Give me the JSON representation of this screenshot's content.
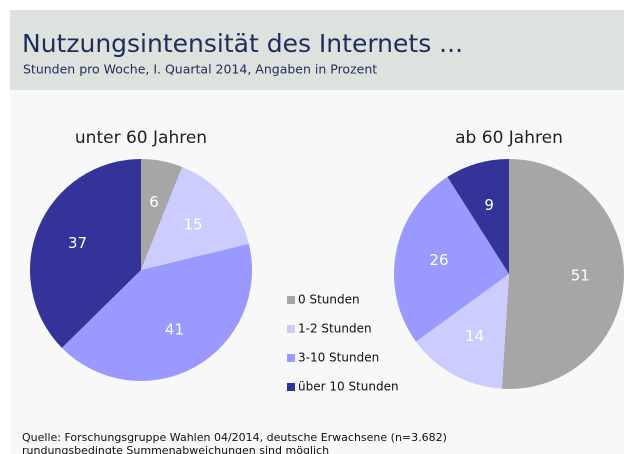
{
  "header": {
    "title": "Nutzungsintensität des Internets ...",
    "subtitle": "Stunden pro Woche, I. Quartal 2014, Angaben in Prozent"
  },
  "chart_data": [
    {
      "type": "pie",
      "title": "unter 60 Jahren",
      "categories": [
        "0 Stunden",
        "1-2 Stunden",
        "3-10 Stunden",
        "über 10 Stunden"
      ],
      "values": [
        6,
        15,
        41,
        37
      ],
      "colors": [
        "#a6a6a6",
        "#ccccff",
        "#9999ff",
        "#333399"
      ]
    },
    {
      "type": "pie",
      "title": "ab 60 Jahren",
      "categories": [
        "0 Stunden",
        "1-2 Stunden",
        "3-10 Stunden",
        "über 10 Stunden"
      ],
      "values": [
        51,
        14,
        26,
        9
      ],
      "colors": [
        "#a6a6a6",
        "#ccccff",
        "#9999ff",
        "#333399"
      ]
    }
  ],
  "footer": {
    "source": "Quelle: Forschungsgruppe Wahlen 04/2014, deutsche Erwachsene (n=3.682)",
    "note": "rundungsbedingte Summenabweichungen sind möglich"
  }
}
